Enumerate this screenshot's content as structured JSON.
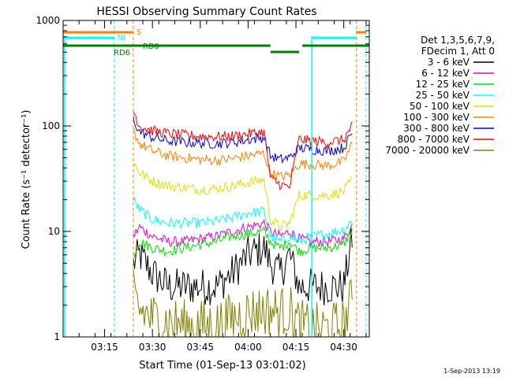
{
  "chart_data": {
    "type": "line",
    "title": "HESSI Observing Summary Count Rates",
    "xlabel": "Start Time (01-Sep-13 03:01:02)",
    "ylabel": "Count Rate (s⁻¹ detector⁻¹)",
    "xlim": [
      "03:02",
      "04:38"
    ],
    "ylim": [
      1,
      1000
    ],
    "yscale": "log",
    "x_ticks": [
      "03:15",
      "03:30",
      "03:45",
      "04:00",
      "04:15",
      "04:30"
    ],
    "y_ticks": [
      "1",
      "10",
      "100",
      "1000"
    ],
    "legend_position": "top-right",
    "legend_header": [
      "Det 1,3,5,6,7,9,",
      "FDecim 1, Att 0"
    ],
    "footer": "1-Sep-2013 13:19",
    "flags": [
      {
        "label": "S",
        "color": "#ff8000",
        "segments": [
          [
            "03:02",
            "03:24"
          ],
          [
            "04:34",
            "04:37"
          ]
        ]
      },
      {
        "label": "NI",
        "color": "#00ffff",
        "segments": [
          [
            "03:02",
            "03:18"
          ],
          [
            "04:20",
            "04:34"
          ]
        ]
      },
      {
        "label": "RD0",
        "color": "#008000",
        "segments": [
          [
            "03:02",
            "04:07"
          ],
          [
            "04:17",
            "04:38"
          ]
        ]
      },
      {
        "label": "RD6",
        "color": "#008000",
        "segments": [
          [
            "04:07",
            "04:16"
          ]
        ]
      }
    ],
    "x": [
      "03:24",
      "03:26",
      "03:30",
      "03:35",
      "03:40",
      "03:45",
      "03:50",
      "03:55",
      "04:00",
      "04:05",
      "04:07",
      "04:10",
      "04:13",
      "04:16",
      "04:20",
      "04:25",
      "04:30",
      "04:33"
    ],
    "series": [
      {
        "name": "3 - 6 keV",
        "color": "#000000",
        "values": [
          5,
          6,
          4,
          3,
          3,
          3,
          3,
          4,
          6,
          7,
          5,
          4,
          6,
          3,
          3,
          3,
          3,
          10
        ]
      },
      {
        "name": "6 - 12 keV",
        "color": "#e000e0",
        "values": [
          9,
          11,
          9,
          8,
          8,
          8.5,
          9,
          10,
          11,
          12,
          10,
          9,
          10,
          8.5,
          8,
          8,
          8.5,
          12
        ]
      },
      {
        "name": "12 - 25 keV",
        "color": "#00e000",
        "values": [
          6,
          8,
          7,
          6.5,
          7,
          7.5,
          8,
          9,
          9.5,
          10,
          8,
          7,
          8,
          6.5,
          7,
          7,
          7.5,
          11
        ]
      },
      {
        "name": "25 - 50 keV",
        "color": "#00ffff",
        "values": [
          20,
          16,
          13,
          12,
          12,
          12,
          12.5,
          13.5,
          15,
          15.5,
          9,
          8,
          9,
          8,
          9,
          9.5,
          10.5,
          13
        ]
      },
      {
        "name": "50 - 100 keV",
        "color": "#e0e000",
        "values": [
          45,
          36,
          30,
          27,
          26,
          25,
          25.5,
          27,
          29,
          31,
          13,
          11,
          12,
          22,
          22,
          22,
          24,
          32
        ]
      },
      {
        "name": "100 - 300 keV",
        "color": "#ff8000",
        "values": [
          90,
          68,
          58,
          52,
          50,
          48,
          47,
          49,
          52,
          55,
          36,
          33,
          34,
          44,
          43,
          42,
          46,
          72
        ]
      },
      {
        "name": "300 - 800 keV",
        "color": "#0000e0",
        "values": [
          115,
          88,
          78,
          72,
          70,
          69,
          68,
          70,
          74,
          78,
          52,
          48,
          50,
          62,
          60,
          58,
          62,
          90
        ]
      },
      {
        "name": "800 - 7000 keV",
        "color": "#ff0000",
        "values": [
          140,
          100,
          90,
          85,
          82,
          80,
          79,
          80,
          84,
          88,
          32,
          28,
          26,
          75,
          72,
          70,
          74,
          105
        ]
      },
      {
        "name": "7000 - 20000 keV",
        "color": "#808000",
        "values": [
          2.5,
          1.8,
          1.5,
          1.4,
          1.3,
          1.3,
          1.3,
          1.5,
          1.7,
          1.8,
          1.8,
          1.7,
          1.8,
          1.3,
          1.2,
          1.2,
          1.3,
          2.5
        ]
      }
    ]
  }
}
